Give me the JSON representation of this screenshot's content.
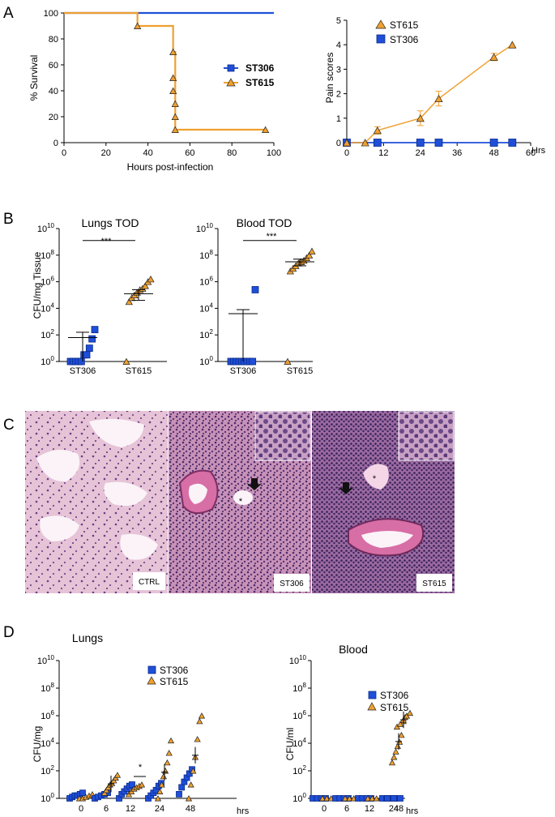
{
  "panel_letters": [
    "A",
    "B",
    "C",
    "D"
  ],
  "colors": {
    "ST306": "#1f4fd8",
    "ST615": "#f0a030",
    "axis": "#000000"
  },
  "chart_data": [
    {
      "id": "A-survival",
      "type": "line",
      "xlabel": "Hours post-infection",
      "ylabel": "% Survival",
      "xlim": [
        0,
        100
      ],
      "ylim": [
        0,
        100
      ],
      "xticks": [
        "0",
        "20",
        "40",
        "60",
        "80",
        "100"
      ],
      "yticks": [
        "0",
        "20",
        "40",
        "60",
        "80",
        "100"
      ],
      "legend": [
        "ST306",
        "ST615"
      ],
      "series": [
        {
          "name": "ST306",
          "step": [
            [
              0,
              100
            ],
            [
              100,
              100
            ]
          ],
          "markers": []
        },
        {
          "name": "ST615",
          "step": [
            [
              0,
              100
            ],
            [
              35,
              100
            ],
            [
              35,
              90
            ],
            [
              52,
              90
            ],
            [
              52,
              70
            ],
            [
              53,
              70
            ],
            [
              53,
              10
            ],
            [
              96,
              10
            ]
          ],
          "markers": [
            [
              35,
              90
            ],
            [
              52,
              70
            ],
            [
              52,
              50
            ],
            [
              52,
              40
            ],
            [
              53,
              30
            ],
            [
              53,
              20
            ],
            [
              53,
              10
            ],
            [
              96,
              10
            ]
          ]
        }
      ]
    },
    {
      "id": "A-pain",
      "type": "line",
      "ylabel": "Pain scores",
      "xunit": "Hrs",
      "xlim": [
        0,
        60
      ],
      "ylim": [
        0,
        5
      ],
      "xticks": [
        "0",
        "12",
        "24",
        "36",
        "48",
        "60"
      ],
      "yticks": [
        "0",
        "1",
        "2",
        "3",
        "4",
        "5"
      ],
      "legend": [
        "ST615",
        "ST306"
      ],
      "series": [
        {
          "name": "ST615",
          "x": [
            0,
            6,
            10,
            24,
            30,
            48,
            54
          ],
          "y": [
            0,
            0,
            0.5,
            1.0,
            1.8,
            3.5,
            4.0
          ],
          "err": [
            0,
            0,
            0.15,
            0.3,
            0.3,
            0.15,
            0
          ]
        },
        {
          "name": "ST306",
          "x": [
            0,
            6,
            10,
            24,
            30,
            48,
            54
          ],
          "y": [
            0,
            0,
            0,
            0,
            0,
            0,
            0
          ]
        }
      ]
    },
    {
      "id": "B-lungs",
      "type": "scatter",
      "title": "Lungs TOD",
      "ylabel": "CFU/mg Tissue",
      "yscale": "log",
      "ylim_exp": [
        0,
        10
      ],
      "ytick_exps": [
        "0",
        "2",
        "4",
        "6",
        "8",
        "10"
      ],
      "categories": [
        "ST306",
        "ST615"
      ],
      "significance": "***",
      "groups": [
        {
          "name": "ST306",
          "log_values": [
            0,
            0,
            0,
            0,
            0,
            0.5,
            0.5,
            1.0,
            1.7,
            2.4
          ],
          "mean_log": 1.8,
          "sem_hi": 2.2,
          "sem_lo": 0
        },
        {
          "name": "ST615",
          "log_values": [
            0,
            4.5,
            4.8,
            5.0,
            5.2,
            5.4,
            5.5,
            5.7,
            6.0,
            6.2
          ],
          "mean_log": 5.1,
          "sem_hi": 5.4,
          "sem_lo": 4.6
        }
      ]
    },
    {
      "id": "B-blood",
      "type": "scatter",
      "title": "Blood TOD",
      "yscale": "log",
      "ylim_exp": [
        0,
        10
      ],
      "ytick_exps": [
        "0",
        "2",
        "4",
        "6",
        "8",
        "10"
      ],
      "categories": [
        "ST306",
        "ST615"
      ],
      "significance": "***",
      "groups": [
        {
          "name": "ST306",
          "log_values": [
            0,
            0,
            0,
            0,
            0,
            0,
            0,
            0,
            0,
            5.4
          ],
          "mean_log": 3.6,
          "sem_hi": 3.9,
          "sem_lo": 0
        },
        {
          "name": "ST615",
          "log_values": [
            0,
            6.8,
            7.0,
            7.2,
            7.4,
            7.5,
            7.6,
            7.8,
            8.0,
            8.3
          ],
          "mean_log": 7.5,
          "sem_hi": 7.7,
          "sem_lo": 7.2
        }
      ]
    },
    {
      "id": "D-lungs",
      "type": "scatter",
      "title": "Lungs",
      "ylabel": "CFU/mg",
      "yscale": "log",
      "ylim_exp": [
        0,
        10
      ],
      "ytick_exps": [
        "0",
        "2",
        "4",
        "6",
        "8",
        "10"
      ],
      "categories": [
        "0",
        "6",
        "12",
        "24",
        "48"
      ],
      "xunit": "hrs",
      "legend": [
        "ST306",
        "ST615"
      ],
      "significance": {
        "at": "12",
        "label": "*"
      },
      "groups": [
        {
          "x": "0",
          "ST306": [
            0,
            0.1,
            0.2,
            0.2,
            0.3,
            0.4
          ],
          "ST615": [
            0,
            0,
            0.1,
            0.2,
            0.3
          ]
        },
        {
          "x": "6",
          "ST306": [
            0,
            0.1,
            0.2,
            0.3,
            0.4
          ],
          "ST615": [
            0.4,
            0.6,
            0.8,
            1.0,
            1.1,
            1.3,
            1.5,
            1.7
          ]
        },
        {
          "x": "12",
          "ST306": [
            0,
            0.3,
            0.5,
            0.7,
            0.9,
            1.0
          ],
          "ST615": [
            0.3,
            0.5,
            0.7,
            0.8,
            0.9,
            1.0
          ]
        },
        {
          "x": "24",
          "ST306": [
            0,
            0.2,
            0.4,
            0.6,
            0.9,
            1.1
          ],
          "ST615": [
            0,
            0.5,
            1.0,
            1.6,
            2.0,
            2.6,
            3.3,
            4.2
          ]
        },
        {
          "x": "48",
          "ST306": [
            0.3,
            0.8,
            1.2,
            1.5,
            1.8,
            2.1
          ],
          "ST615": [
            0,
            1.0,
            2.0,
            3.0,
            4.3,
            5.6,
            6.0
          ]
        }
      ]
    },
    {
      "id": "D-blood",
      "type": "scatter",
      "title": "Blood",
      "ylabel": "CFU/ml",
      "yscale": "log",
      "ylim_exp": [
        0,
        10
      ],
      "ytick_exps": [
        "0",
        "2",
        "4",
        "6",
        "8",
        "10"
      ],
      "categories": [
        "0",
        "6",
        "12",
        "24",
        "48"
      ],
      "xunit": "hrs",
      "legend": [
        "ST306",
        "ST615"
      ],
      "groups": [
        {
          "x": "0",
          "ST306": [
            0,
            0,
            0,
            0
          ],
          "ST615": [
            0,
            0,
            0,
            0
          ]
        },
        {
          "x": "6",
          "ST306": [
            0,
            0,
            0,
            0
          ],
          "ST615": [
            0,
            0,
            0,
            0
          ]
        },
        {
          "x": "12",
          "ST306": [
            0,
            0,
            0,
            0
          ],
          "ST615": [
            0,
            0,
            0,
            0
          ]
        },
        {
          "x": "24",
          "ST306": [
            0,
            0,
            0,
            0
          ],
          "ST615": [
            2.6,
            3.0,
            3.4,
            3.8,
            4.1,
            4.6,
            5.6,
            5.9
          ]
        },
        {
          "x": "48",
          "ST306": [
            0,
            0,
            0
          ],
          "ST615": [
            5.2,
            5.4,
            5.7,
            6.0,
            6.2
          ]
        }
      ]
    }
  ],
  "histology": {
    "labels": [
      "CTRL",
      "ST306",
      "ST615"
    ],
    "markers": [
      "*",
      "*"
    ]
  }
}
